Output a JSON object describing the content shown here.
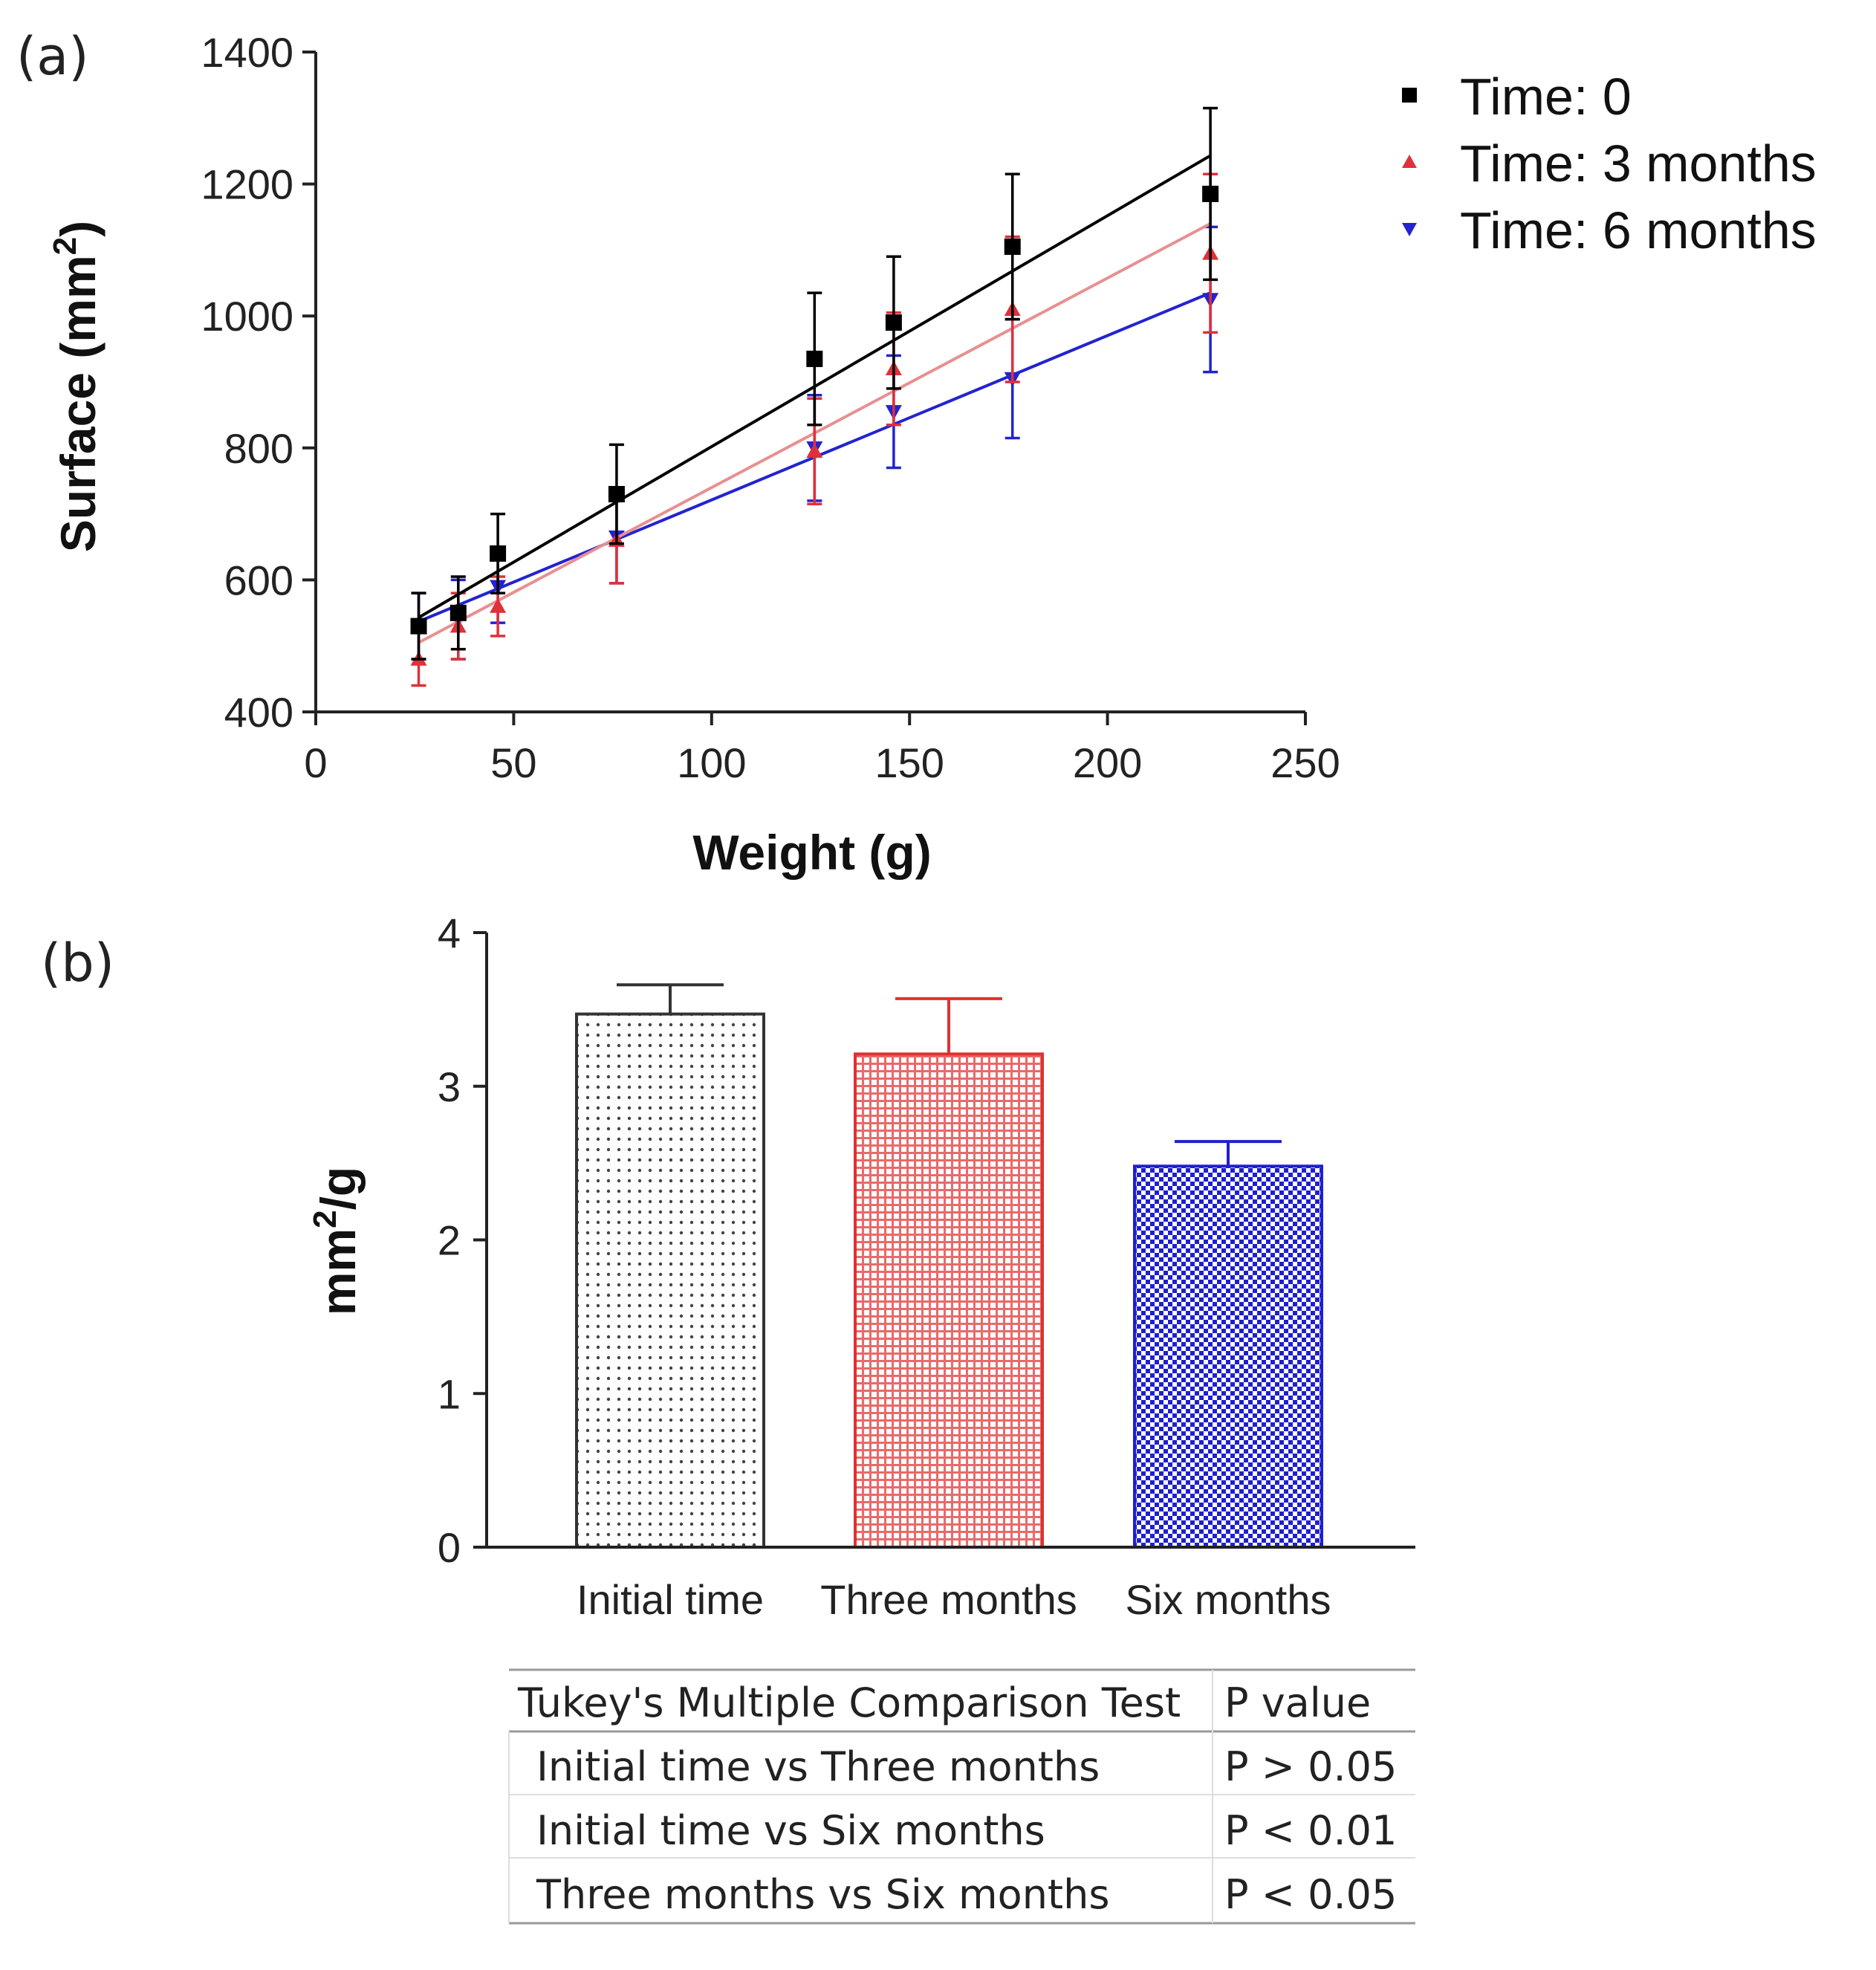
{
  "chart_data": [
    {
      "panel": "(a)",
      "type": "scatter",
      "xlabel": "Weight (g)",
      "ylabel_main": "Surface (mm",
      "ylabel_sup": "2",
      "ylabel_close": ")",
      "xlim": [
        0,
        250
      ],
      "ylim": [
        400,
        1400
      ],
      "xticks": [
        0,
        50,
        100,
        150,
        200,
        250
      ],
      "yticks": [
        400,
        600,
        800,
        1000,
        1200,
        1400
      ],
      "legend_position": "top-right",
      "series": [
        {
          "name": "Time: 0",
          "color": "#000000",
          "marker": "square",
          "x": [
            26,
            36,
            46,
            76,
            126,
            146,
            176,
            226
          ],
          "y": [
            530,
            550,
            640,
            730,
            935,
            990,
            1105,
            1185
          ],
          "err": [
            50,
            55,
            60,
            75,
            100,
            100,
            110,
            130
          ],
          "fit": [
            [
              26,
              543
            ],
            [
              226,
              1243
            ]
          ]
        },
        {
          "name": "Time: 3 months",
          "color": "#e0303a",
          "marker": "triangle-up",
          "x": [
            26,
            36,
            46,
            76,
            126,
            146,
            176,
            226
          ],
          "y": [
            480,
            530,
            560,
            660,
            795,
            920,
            1010,
            1095
          ],
          "err": [
            40,
            50,
            45,
            65,
            80,
            85,
            110,
            120
          ],
          "fit": [
            [
              26,
              505
            ],
            [
              226,
              1140
            ]
          ]
        },
        {
          "name": "Time: 6 months",
          "color": "#2323d0",
          "marker": "triangle-down",
          "x": [
            26,
            36,
            46,
            76,
            126,
            146,
            176,
            226
          ],
          "y": [
            530,
            540,
            590,
            665,
            800,
            855,
            905,
            1025
          ],
          "err": [
            50,
            60,
            55,
            70,
            80,
            85,
            90,
            110
          ],
          "fit": [
            [
              26,
              537
            ],
            [
              226,
              1035
            ]
          ]
        }
      ]
    },
    {
      "panel": "(b)",
      "type": "bar",
      "ylabel_main": "mm",
      "ylabel_sup": "2",
      "ylabel_tail": "/g",
      "ylim": [
        0,
        4
      ],
      "yticks": [
        0,
        1,
        2,
        3,
        4
      ],
      "categories": [
        "Initial time",
        "Three months",
        "Six months"
      ],
      "values": [
        3.47,
        3.21,
        2.48
      ],
      "errors": [
        0.19,
        0.36,
        0.16
      ],
      "colors": [
        "#333333",
        "#e03030",
        "#1f1fd0"
      ]
    }
  ],
  "table": {
    "headers": [
      "Tukey's Multiple Comparison Test",
      "P value"
    ],
    "rows": [
      [
        "Initial time vs Three months",
        "P > 0.05"
      ],
      [
        "Initial time vs Six months",
        "P < 0.01"
      ],
      [
        "Three months vs Six months",
        "P < 0.05"
      ]
    ]
  }
}
